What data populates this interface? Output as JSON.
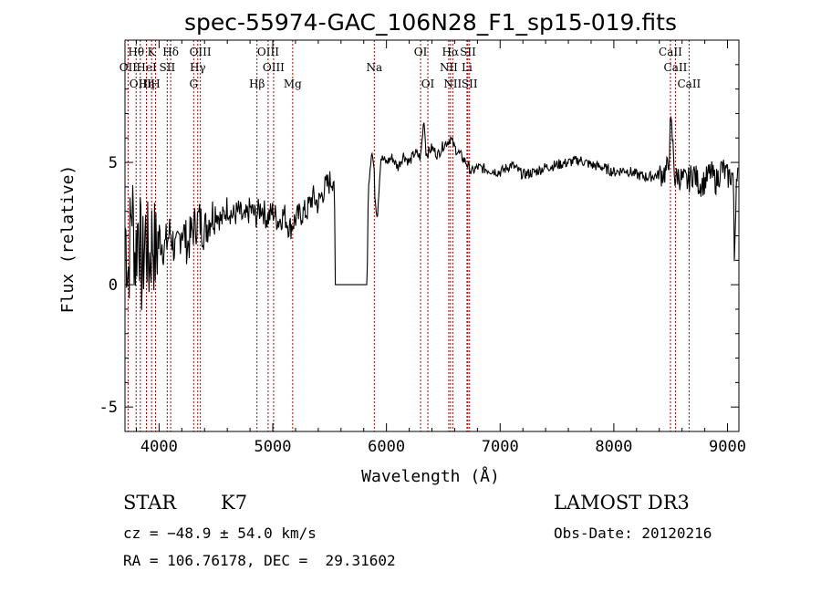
{
  "chart_data": {
    "type": "line",
    "title": "spec-55974-GAC_106N28_F1_sp15-019.fits",
    "xlabel": "Wavelength (Å)",
    "ylabel": "Flux (relative)",
    "xlim": [
      3700,
      9100
    ],
    "ylim": [
      -6,
      10
    ],
    "x_ticks": [
      4000,
      5000,
      6000,
      7000,
      8000,
      9000
    ],
    "y_ticks": [
      -5,
      0,
      5
    ],
    "series": [
      {
        "name": "flux",
        "x": [
          3700,
          3730,
          3760,
          3790,
          3820,
          3850,
          3880,
          3910,
          3940,
          3970,
          4000,
          4050,
          4100,
          4150,
          4200,
          4250,
          4300,
          4350,
          4400,
          4450,
          4500,
          4550,
          4600,
          4650,
          4700,
          4750,
          4800,
          4850,
          4900,
          4950,
          5000,
          5050,
          5100,
          5150,
          5200,
          5250,
          5300,
          5350,
          5400,
          5450,
          5500,
          5540,
          5550,
          5830,
          5840,
          5870,
          5890,
          5900,
          5920,
          5950,
          6000,
          6050,
          6100,
          6150,
          6200,
          6250,
          6300,
          6330,
          6350,
          6400,
          6450,
          6500,
          6550,
          6563,
          6600,
          6650,
          6700,
          6750,
          6800,
          6900,
          7000,
          7100,
          7200,
          7300,
          7400,
          7500,
          7600,
          7700,
          7800,
          7900,
          8000,
          8100,
          8200,
          8300,
          8400,
          8450,
          8480,
          8498,
          8510,
          8540,
          8560,
          8600,
          8650,
          8700,
          8750,
          8800,
          8850,
          8900,
          8950,
          9000,
          9050,
          9060,
          9080,
          9100
        ],
        "y": [
          2.5,
          0.5,
          3.5,
          1.0,
          2.8,
          0.3,
          2.2,
          0.8,
          2.0,
          1.2,
          2.0,
          1.5,
          2.2,
          1.2,
          2.4,
          1.6,
          2.3,
          2.7,
          2.2,
          2.8,
          3.0,
          2.6,
          3.2,
          2.8,
          3.0,
          2.6,
          3.1,
          2.8,
          3.2,
          2.7,
          3.0,
          2.6,
          2.9,
          2.3,
          2.7,
          2.9,
          3.0,
          3.6,
          3.3,
          3.9,
          4.2,
          4.4,
          0.0,
          0.0,
          4.0,
          5.5,
          4.8,
          3.5,
          2.8,
          5.2,
          5.0,
          5.2,
          4.8,
          5.3,
          5.0,
          5.4,
          5.2,
          6.8,
          5.3,
          5.6,
          5.3,
          5.7,
          5.9,
          6.0,
          5.6,
          5.3,
          5.0,
          4.6,
          4.8,
          4.7,
          4.6,
          4.9,
          4.5,
          4.6,
          4.8,
          4.9,
          5.0,
          5.1,
          4.9,
          4.8,
          4.6,
          4.7,
          4.5,
          4.4,
          4.5,
          4.6,
          4.8,
          6.5,
          6.3,
          4.2,
          4.5,
          4.3,
          4.2,
          4.6,
          4.1,
          4.2,
          4.6,
          4.2,
          4.8,
          4.4,
          4.5,
          1.0,
          4.8,
          4.6
        ]
      }
    ],
    "line_markers": [
      {
        "label": "OII",
        "x": 3727,
        "row": 2
      },
      {
        "label": "Hθ",
        "x": 3798,
        "row": 1
      },
      {
        "label": "OIII",
        "x": 3835,
        "row": 3
      },
      {
        "label": "HeI",
        "x": 3889,
        "row": 2
      },
      {
        "label": "Hη",
        "x": 3889,
        "row": 3
      },
      {
        "label": "K",
        "x": 3934,
        "row": 1
      },
      {
        "label": "H",
        "x": 3969,
        "row": 3
      },
      {
        "label": "SII",
        "x": 4072,
        "row": 2
      },
      {
        "label": "Hδ",
        "x": 4102,
        "row": 1
      },
      {
        "label": "OIII",
        "x": 4363,
        "row": 1
      },
      {
        "label": "Hγ",
        "x": 4340,
        "row": 2
      },
      {
        "label": "G",
        "x": 4304,
        "row": 3
      },
      {
        "label": "Hβ",
        "x": 4861,
        "row": 3
      },
      {
        "label": "OIII",
        "x": 4959,
        "row": 1
      },
      {
        "label": "OIII",
        "x": 5007,
        "row": 2
      },
      {
        "label": "Mg",
        "x": 5175,
        "row": 3
      },
      {
        "label": "Na",
        "x": 5893,
        "row": 2
      },
      {
        "label": "OI",
        "x": 6300,
        "row": 1
      },
      {
        "label": "OI",
        "x": 6364,
        "row": 3
      },
      {
        "label": "Hα",
        "x": 6563,
        "row": 1
      },
      {
        "label": "NII",
        "x": 6548,
        "row": 2
      },
      {
        "label": "NII",
        "x": 6583,
        "row": 3
      },
      {
        "label": "Li",
        "x": 6708,
        "row": 2
      },
      {
        "label": "SII",
        "x": 6717,
        "row": 1
      },
      {
        "label": "SII",
        "x": 6731,
        "row": 3
      },
      {
        "label": "CaII",
        "x": 8498,
        "row": 1
      },
      {
        "label": "CaII",
        "x": 8542,
        "row": 2
      },
      {
        "label": "CaII",
        "x": 8662,
        "row": 3
      }
    ],
    "grid": false,
    "legend": "none"
  },
  "info": {
    "class_label": "STAR",
    "subclass": "K7",
    "survey": "LAMOST DR3",
    "cz": "cz = −48.9 ± 54.0 km/s",
    "obs_date": "Obs-Date: 20120216",
    "coords": "RA = 106.76178, DEC =  29.31602"
  }
}
